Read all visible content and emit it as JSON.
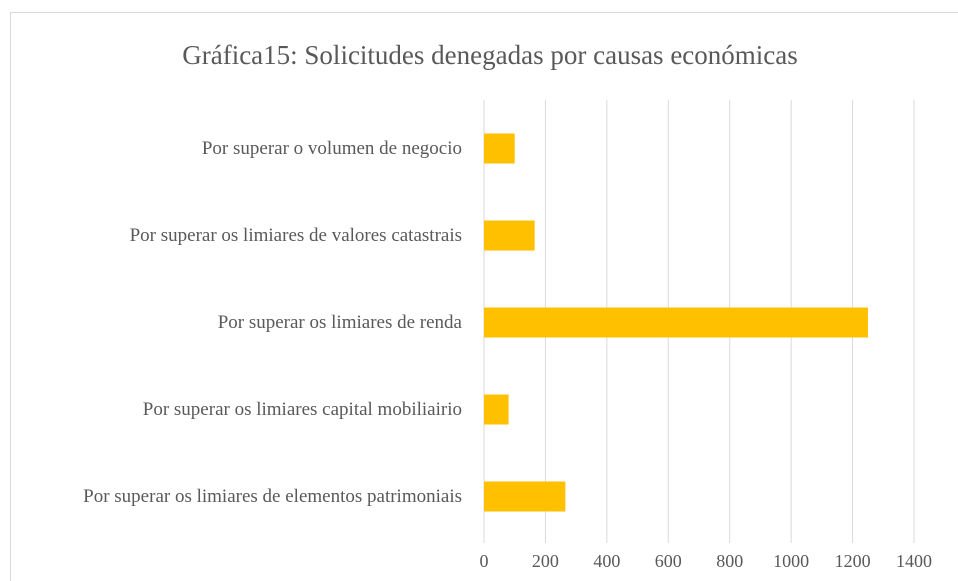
{
  "chart_data": {
    "type": "barh",
    "title": "Gráfica15: Solicitudes denegadas por causas económicas",
    "categories": [
      "Por superar o volumen de negocio",
      "Por superar os limiares de valores catastrais",
      "Por superar os limiares de renda",
      "Por superar os limiares capital mobiliairio",
      "Por superar os limiares de elementos patrimoniais"
    ],
    "values": [
      100,
      165,
      1250,
      80,
      265
    ],
    "color": "#ffc000",
    "xlim": [
      0,
      1400
    ],
    "xticks": [
      0,
      200,
      400,
      600,
      800,
      1000,
      1200,
      1400
    ],
    "grid": true
  }
}
